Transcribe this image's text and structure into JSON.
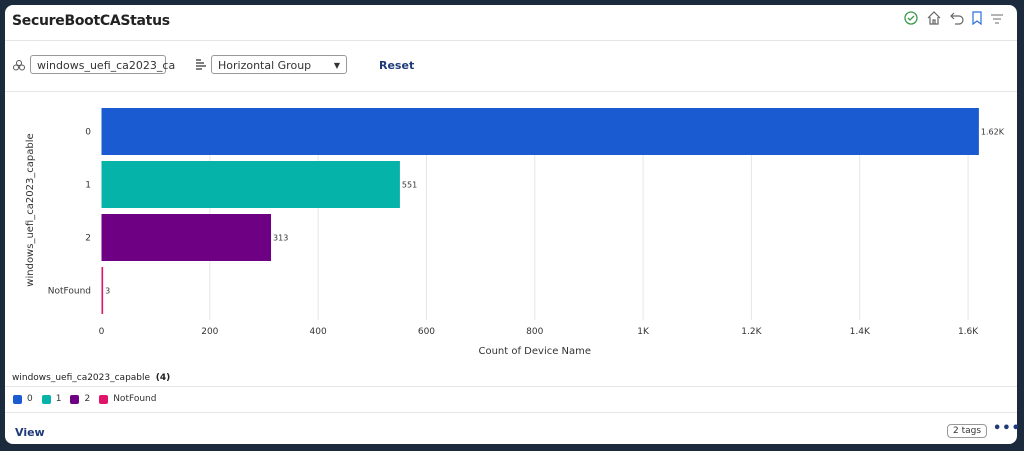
{
  "header": {
    "title": "SecureBootCAStatus",
    "icons": [
      "check-circle-icon",
      "home-icon",
      "undo-icon",
      "bookmark-icon",
      "filter-icon"
    ]
  },
  "controls": {
    "field_value": "windows_uefi_ca2023_ca",
    "group_select": "Horizontal Group",
    "reset_label": "Reset"
  },
  "chart_data": {
    "type": "bar",
    "orientation": "horizontal",
    "categories": [
      "0",
      "1",
      "2",
      "NotFound"
    ],
    "values": [
      1620,
      551,
      313,
      3
    ],
    "data_labels": [
      "1.62K",
      "551",
      "313",
      "3"
    ],
    "colors": [
      "#1a5bd1",
      "#06b3a8",
      "#6e0083",
      "#e0156a"
    ],
    "xlabel": "Count of Device Name",
    "ylabel": "windows_uefi_ca2023_capable",
    "xlim": [
      0,
      1660
    ],
    "xticks": [
      0,
      200,
      400,
      600,
      800,
      1000,
      1200,
      1400,
      1600
    ],
    "xtick_labels": [
      "0",
      "200",
      "400",
      "600",
      "800",
      "1K",
      "1.2K",
      "1.4K",
      "1.6K"
    ],
    "grid": true
  },
  "legend": {
    "title": "windows_uefi_ca2023_capable",
    "count": "(4)",
    "items": [
      "0",
      "1",
      "2",
      "NotFound"
    ]
  },
  "footer": {
    "view_label": "View",
    "tags_label": "2 tags",
    "more_label": "•••"
  }
}
